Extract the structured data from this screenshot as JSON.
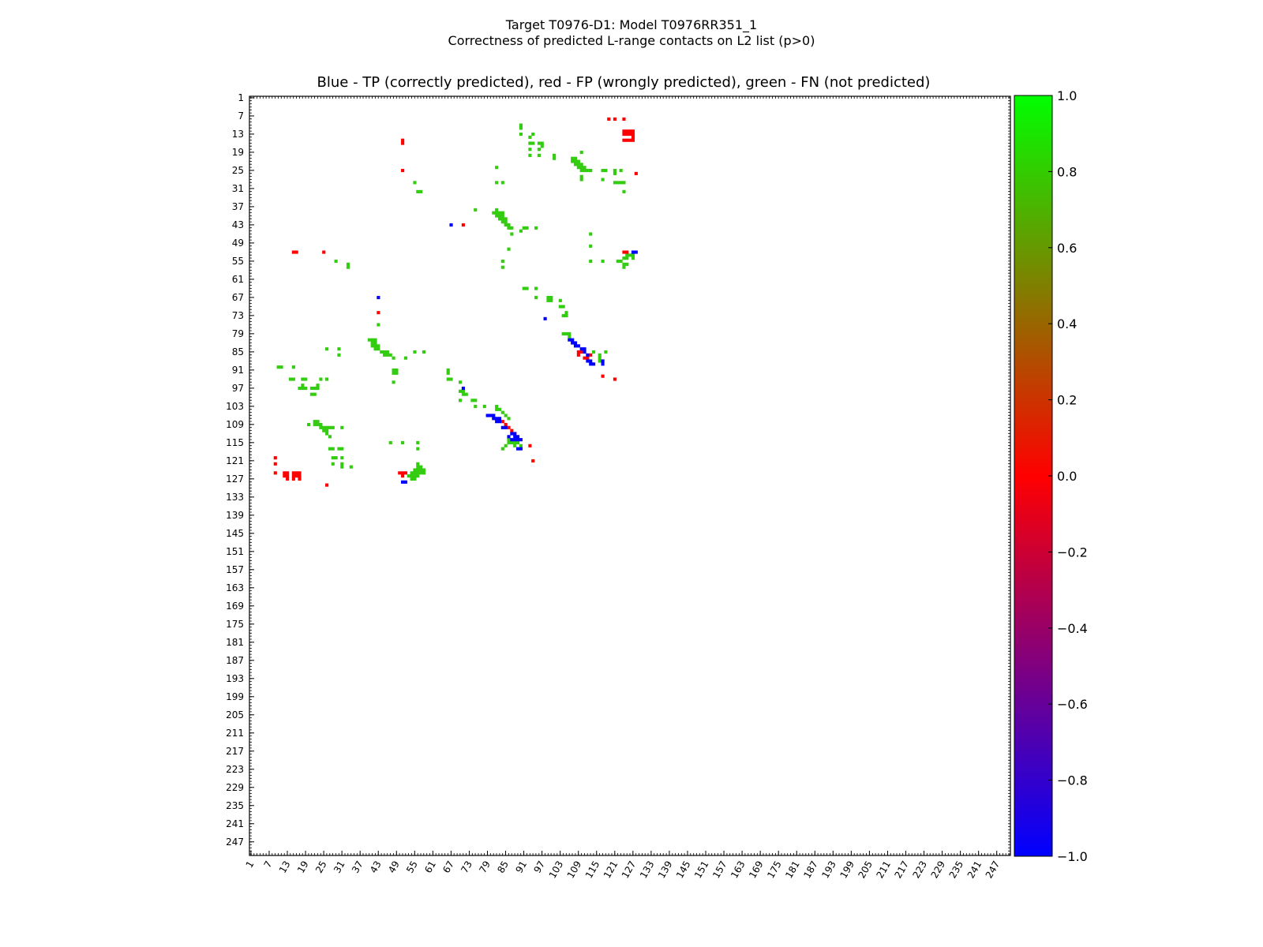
{
  "title_lines": [
    "Target T0976-D1: Model T0976RR351_1",
    "Correctness of predicted L-range contacts on L2 list (p>0)"
  ],
  "chart_data": {
    "type": "heatmap",
    "title": "Blue - TP (correctly predicted), red - FP (wrongly predicted), green - FN (not predicted)",
    "residue_range": [
      1,
      251
    ],
    "ticks": [
      1,
      7,
      13,
      19,
      25,
      31,
      37,
      43,
      49,
      55,
      61,
      67,
      73,
      79,
      85,
      91,
      97,
      103,
      109,
      115,
      121,
      127,
      133,
      139,
      145,
      151,
      157,
      163,
      169,
      175,
      181,
      187,
      193,
      199,
      205,
      211,
      217,
      223,
      229,
      235,
      241,
      247
    ],
    "colorbar": {
      "range": [
        -1.0,
        1.0
      ],
      "ticks": [
        "1.0",
        "0.8",
        "0.6",
        "0.4",
        "0.2",
        "0.0",
        "−0.2",
        "−0.4",
        "−0.6",
        "−0.8",
        "−1.0"
      ],
      "stops": [
        "#0000ff",
        "#ff0000",
        "#00ff00"
      ]
    },
    "categories": {
      "TP": {
        "value": -1.0,
        "color": "#0000ff"
      },
      "FP": {
        "value": 0.0,
        "color": "#ff0000"
      },
      "FN": {
        "value": 1.0,
        "color": "#33cc11"
      }
    },
    "contacts": {
      "FN": [
        [
          90,
          10
        ],
        [
          90,
          11
        ],
        [
          90,
          13
        ],
        [
          94,
          13
        ],
        [
          93,
          14
        ],
        [
          93,
          16
        ],
        [
          94,
          16
        ],
        [
          96,
          16
        ],
        [
          97,
          16
        ],
        [
          97,
          17
        ],
        [
          93,
          18
        ],
        [
          96,
          18
        ],
        [
          93,
          20
        ],
        [
          96,
          20
        ],
        [
          101,
          20
        ],
        [
          101,
          21
        ],
        [
          110,
          19
        ],
        [
          107,
          21
        ],
        [
          108,
          21
        ],
        [
          107,
          22
        ],
        [
          108,
          22
        ],
        [
          109,
          22
        ],
        [
          108,
          23
        ],
        [
          109,
          23
        ],
        [
          110,
          23
        ],
        [
          109,
          24
        ],
        [
          110,
          24
        ],
        [
          111,
          24
        ],
        [
          110,
          25
        ],
        [
          111,
          25
        ],
        [
          112,
          25
        ],
        [
          113,
          25
        ],
        [
          117,
          25
        ],
        [
          118,
          25
        ],
        [
          121,
          25
        ],
        [
          123,
          25
        ],
        [
          121,
          26
        ],
        [
          82,
          24
        ],
        [
          82,
          29
        ],
        [
          84,
          29
        ],
        [
          110,
          27
        ],
        [
          110,
          28
        ],
        [
          117,
          28
        ],
        [
          121,
          29
        ],
        [
          122,
          29
        ],
        [
          123,
          29
        ],
        [
          124,
          29
        ],
        [
          55,
          29
        ],
        [
          56,
          32
        ],
        [
          57,
          32
        ],
        [
          124,
          32
        ],
        [
          75,
          38
        ],
        [
          82,
          38
        ],
        [
          81,
          39
        ],
        [
          82,
          39
        ],
        [
          83,
          39
        ],
        [
          84,
          39
        ],
        [
          82,
          40
        ],
        [
          83,
          40
        ],
        [
          84,
          40
        ],
        [
          83,
          41
        ],
        [
          84,
          41
        ],
        [
          85,
          41
        ],
        [
          84,
          42
        ],
        [
          85,
          42
        ],
        [
          85,
          43
        ],
        [
          86,
          43
        ],
        [
          86,
          44
        ],
        [
          87,
          44
        ],
        [
          91,
          44
        ],
        [
          92,
          44
        ],
        [
          95,
          44
        ],
        [
          90,
          45
        ],
        [
          87,
          46
        ],
        [
          113,
          46
        ],
        [
          113,
          50
        ],
        [
          86,
          51
        ],
        [
          84,
          55
        ],
        [
          84,
          57
        ],
        [
          113,
          55
        ],
        [
          117,
          55
        ],
        [
          122,
          55
        ],
        [
          123,
          55
        ],
        [
          124,
          56
        ],
        [
          125,
          56
        ],
        [
          124,
          54
        ],
        [
          125,
          54
        ],
        [
          125,
          53
        ],
        [
          126,
          53
        ],
        [
          127,
          53
        ],
        [
          127,
          54
        ],
        [
          124,
          57
        ],
        [
          29,
          55
        ],
        [
          33,
          56
        ],
        [
          33,
          57
        ],
        [
          91,
          64
        ],
        [
          92,
          64
        ],
        [
          95,
          64
        ],
        [
          95,
          67
        ],
        [
          99,
          67
        ],
        [
          100,
          67
        ],
        [
          99,
          68
        ],
        [
          100,
          68
        ],
        [
          103,
          68
        ],
        [
          103,
          70
        ],
        [
          104,
          70
        ],
        [
          105,
          72
        ],
        [
          104,
          73
        ],
        [
          105,
          73
        ],
        [
          43,
          76
        ],
        [
          104,
          79
        ],
        [
          105,
          79
        ],
        [
          106,
          79
        ],
        [
          106,
          80
        ],
        [
          40,
          81
        ],
        [
          41,
          81
        ],
        [
          42,
          81
        ],
        [
          41,
          82
        ],
        [
          42,
          82
        ],
        [
          41,
          83
        ],
        [
          42,
          83
        ],
        [
          43,
          83
        ],
        [
          42,
          84
        ],
        [
          43,
          84
        ],
        [
          44,
          85
        ],
        [
          45,
          85
        ],
        [
          46,
          85
        ],
        [
          45,
          86
        ],
        [
          46,
          86
        ],
        [
          47,
          86
        ],
        [
          48,
          87
        ],
        [
          52,
          87
        ],
        [
          55,
          85
        ],
        [
          58,
          85
        ],
        [
          26,
          84
        ],
        [
          30,
          84
        ],
        [
          30,
          86
        ],
        [
          114,
          85
        ],
        [
          118,
          85
        ],
        [
          116,
          86
        ],
        [
          116,
          87
        ],
        [
          116,
          88
        ],
        [
          117,
          88
        ],
        [
          10,
          90
        ],
        [
          11,
          90
        ],
        [
          15,
          90
        ],
        [
          66,
          91
        ],
        [
          66,
          92
        ],
        [
          66,
          94
        ],
        [
          67,
          94
        ],
        [
          70,
          95
        ],
        [
          14,
          94
        ],
        [
          15,
          94
        ],
        [
          18,
          94
        ],
        [
          19,
          94
        ],
        [
          24,
          94
        ],
        [
          26,
          94
        ],
        [
          18,
          96
        ],
        [
          17,
          97
        ],
        [
          18,
          97
        ],
        [
          19,
          97
        ],
        [
          21,
          97
        ],
        [
          22,
          97
        ],
        [
          23,
          97
        ],
        [
          23,
          96
        ],
        [
          22,
          99
        ],
        [
          21,
          99
        ],
        [
          48,
          91
        ],
        [
          49,
          91
        ],
        [
          49,
          92
        ],
        [
          48,
          92
        ],
        [
          48,
          95
        ],
        [
          70,
          98
        ],
        [
          71,
          98
        ],
        [
          71,
          99
        ],
        [
          72,
          99
        ],
        [
          70,
          101
        ],
        [
          74,
          101
        ],
        [
          75,
          101
        ],
        [
          78,
          103
        ],
        [
          82,
          103
        ],
        [
          75,
          103
        ],
        [
          82,
          104
        ],
        [
          83,
          104
        ],
        [
          84,
          105
        ],
        [
          85,
          106
        ],
        [
          86,
          107
        ],
        [
          20,
          109
        ],
        [
          22,
          108
        ],
        [
          23,
          108
        ],
        [
          22,
          109
        ],
        [
          23,
          109
        ],
        [
          24,
          109
        ],
        [
          24,
          110
        ],
        [
          25,
          110
        ],
        [
          26,
          110
        ],
        [
          25,
          111
        ],
        [
          26,
          111
        ],
        [
          26,
          112
        ],
        [
          27,
          110
        ],
        [
          28,
          110
        ],
        [
          31,
          110
        ],
        [
          27,
          113
        ],
        [
          47,
          115
        ],
        [
          51,
          115
        ],
        [
          56,
          115
        ],
        [
          86,
          114
        ],
        [
          86,
          115
        ],
        [
          87,
          115
        ],
        [
          88,
          115
        ],
        [
          89,
          115
        ],
        [
          88,
          116
        ],
        [
          90,
          116
        ],
        [
          85,
          116
        ],
        [
          84,
          117
        ],
        [
          27,
          117
        ],
        [
          28,
          117
        ],
        [
          56,
          117
        ],
        [
          30,
          117
        ],
        [
          31,
          117
        ],
        [
          28,
          120
        ],
        [
          29,
          120
        ],
        [
          28,
          122
        ],
        [
          31,
          120
        ],
        [
          31,
          122
        ],
        [
          31,
          123
        ],
        [
          34,
          123
        ],
        [
          56,
          122
        ],
        [
          56,
          123
        ],
        [
          57,
          123
        ],
        [
          55,
          124
        ],
        [
          56,
          124
        ],
        [
          57,
          124
        ],
        [
          58,
          124
        ],
        [
          54,
          125
        ],
        [
          55,
          125
        ],
        [
          56,
          125
        ],
        [
          57,
          125
        ],
        [
          58,
          125
        ],
        [
          53,
          126
        ],
        [
          54,
          126
        ],
        [
          55,
          126
        ],
        [
          56,
          126
        ],
        [
          54,
          127
        ],
        [
          55,
          127
        ]
      ],
      "FP": [
        [
          119,
          8
        ],
        [
          121,
          8
        ],
        [
          124,
          8
        ],
        [
          124,
          12
        ],
        [
          125,
          12
        ],
        [
          126,
          12
        ],
        [
          127,
          12
        ],
        [
          124,
          13
        ],
        [
          125,
          13
        ],
        [
          126,
          13
        ],
        [
          127,
          13
        ],
        [
          127,
          14
        ],
        [
          124,
          15
        ],
        [
          125,
          15
        ],
        [
          126,
          15
        ],
        [
          127,
          15
        ],
        [
          51,
          15
        ],
        [
          51,
          16
        ],
        [
          51,
          25
        ],
        [
          128,
          26
        ],
        [
          71,
          43
        ],
        [
          15,
          52
        ],
        [
          16,
          52
        ],
        [
          25,
          52
        ],
        [
          124,
          52
        ],
        [
          125,
          52
        ],
        [
          43,
          72
        ],
        [
          109,
          85
        ],
        [
          110,
          85
        ],
        [
          111,
          87
        ],
        [
          112,
          87
        ],
        [
          113,
          86
        ],
        [
          109,
          86
        ],
        [
          117,
          93
        ],
        [
          121,
          94
        ],
        [
          84,
          108
        ],
        [
          85,
          109
        ],
        [
          86,
          110
        ],
        [
          87,
          111
        ],
        [
          88,
          112
        ],
        [
          93,
          116
        ],
        [
          94,
          121
        ],
        [
          9,
          120
        ],
        [
          9,
          122
        ],
        [
          9,
          125
        ],
        [
          12,
          125
        ],
        [
          13,
          125
        ],
        [
          12,
          126
        ],
        [
          13,
          126
        ],
        [
          13,
          127
        ],
        [
          15,
          125
        ],
        [
          16,
          125
        ],
        [
          17,
          125
        ],
        [
          17,
          126
        ],
        [
          15,
          126
        ],
        [
          16,
          126
        ],
        [
          15,
          127
        ],
        [
          17,
          127
        ],
        [
          26,
          129
        ],
        [
          50,
          125
        ],
        [
          51,
          125
        ],
        [
          52,
          125
        ],
        [
          51,
          126
        ]
      ],
      "TP": [
        [
          67,
          43
        ],
        [
          127,
          52
        ],
        [
          128,
          52
        ],
        [
          43,
          67
        ],
        [
          98,
          74
        ],
        [
          106,
          81
        ],
        [
          107,
          81
        ],
        [
          107,
          82
        ],
        [
          108,
          82
        ],
        [
          108,
          83
        ],
        [
          109,
          83
        ],
        [
          110,
          84
        ],
        [
          111,
          84
        ],
        [
          111,
          85
        ],
        [
          112,
          86
        ],
        [
          112,
          88
        ],
        [
          113,
          88
        ],
        [
          113,
          89
        ],
        [
          114,
          89
        ],
        [
          117,
          88
        ],
        [
          117,
          89
        ],
        [
          71,
          97
        ],
        [
          79,
          106
        ],
        [
          80,
          106
        ],
        [
          81,
          106
        ],
        [
          81,
          107
        ],
        [
          82,
          107
        ],
        [
          83,
          107
        ],
        [
          82,
          108
        ],
        [
          83,
          108
        ],
        [
          84,
          110
        ],
        [
          85,
          110
        ],
        [
          86,
          113
        ],
        [
          87,
          112
        ],
        [
          88,
          112
        ],
        [
          89,
          113
        ],
        [
          88,
          113
        ],
        [
          87,
          114
        ],
        [
          88,
          114
        ],
        [
          89,
          117
        ],
        [
          90,
          117
        ],
        [
          89,
          114
        ],
        [
          90,
          114
        ],
        [
          51,
          128
        ],
        [
          52,
          128
        ]
      ]
    }
  }
}
